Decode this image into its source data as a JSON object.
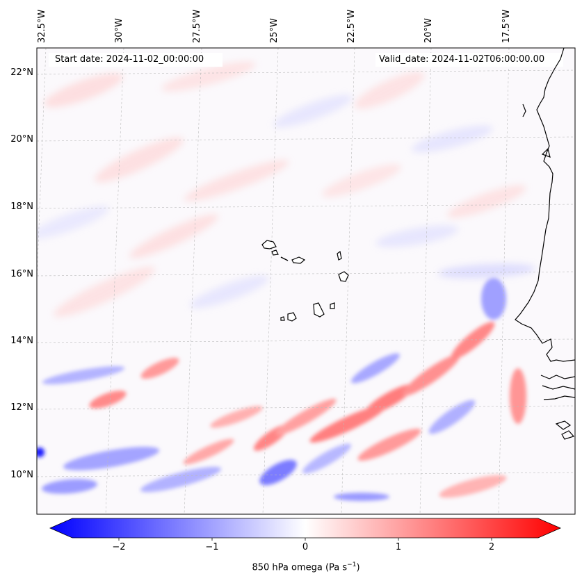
{
  "header": {
    "start_date": "Start date: 2024-11-02_00:00:00",
    "valid_date": "Valid_date: 2024-11-02T06:00:00.00"
  },
  "axes": {
    "lon_labels": [
      "32.5°W",
      "30°W",
      "27.5°W",
      "25°W",
      "22.5°W",
      "20°W",
      "17.5°W"
    ],
    "lat_labels": [
      "22°N",
      "20°N",
      "18°N",
      "16°N",
      "14°N",
      "12°N",
      "10°N"
    ]
  },
  "colorbar": {
    "ticks": [
      "−2",
      "−1",
      "0",
      "1",
      "2"
    ],
    "label_main": "850 hPa omega (Pa s",
    "label_sup": "−1",
    "label_end": ")",
    "colors": {
      "neg": "#0000ff",
      "zero": "#ffffff",
      "pos": "#ff0000"
    }
  },
  "map": {
    "colors": {
      "coast": "#000000",
      "grid": "#bbbbbb",
      "background": "#fafaff"
    }
  }
}
